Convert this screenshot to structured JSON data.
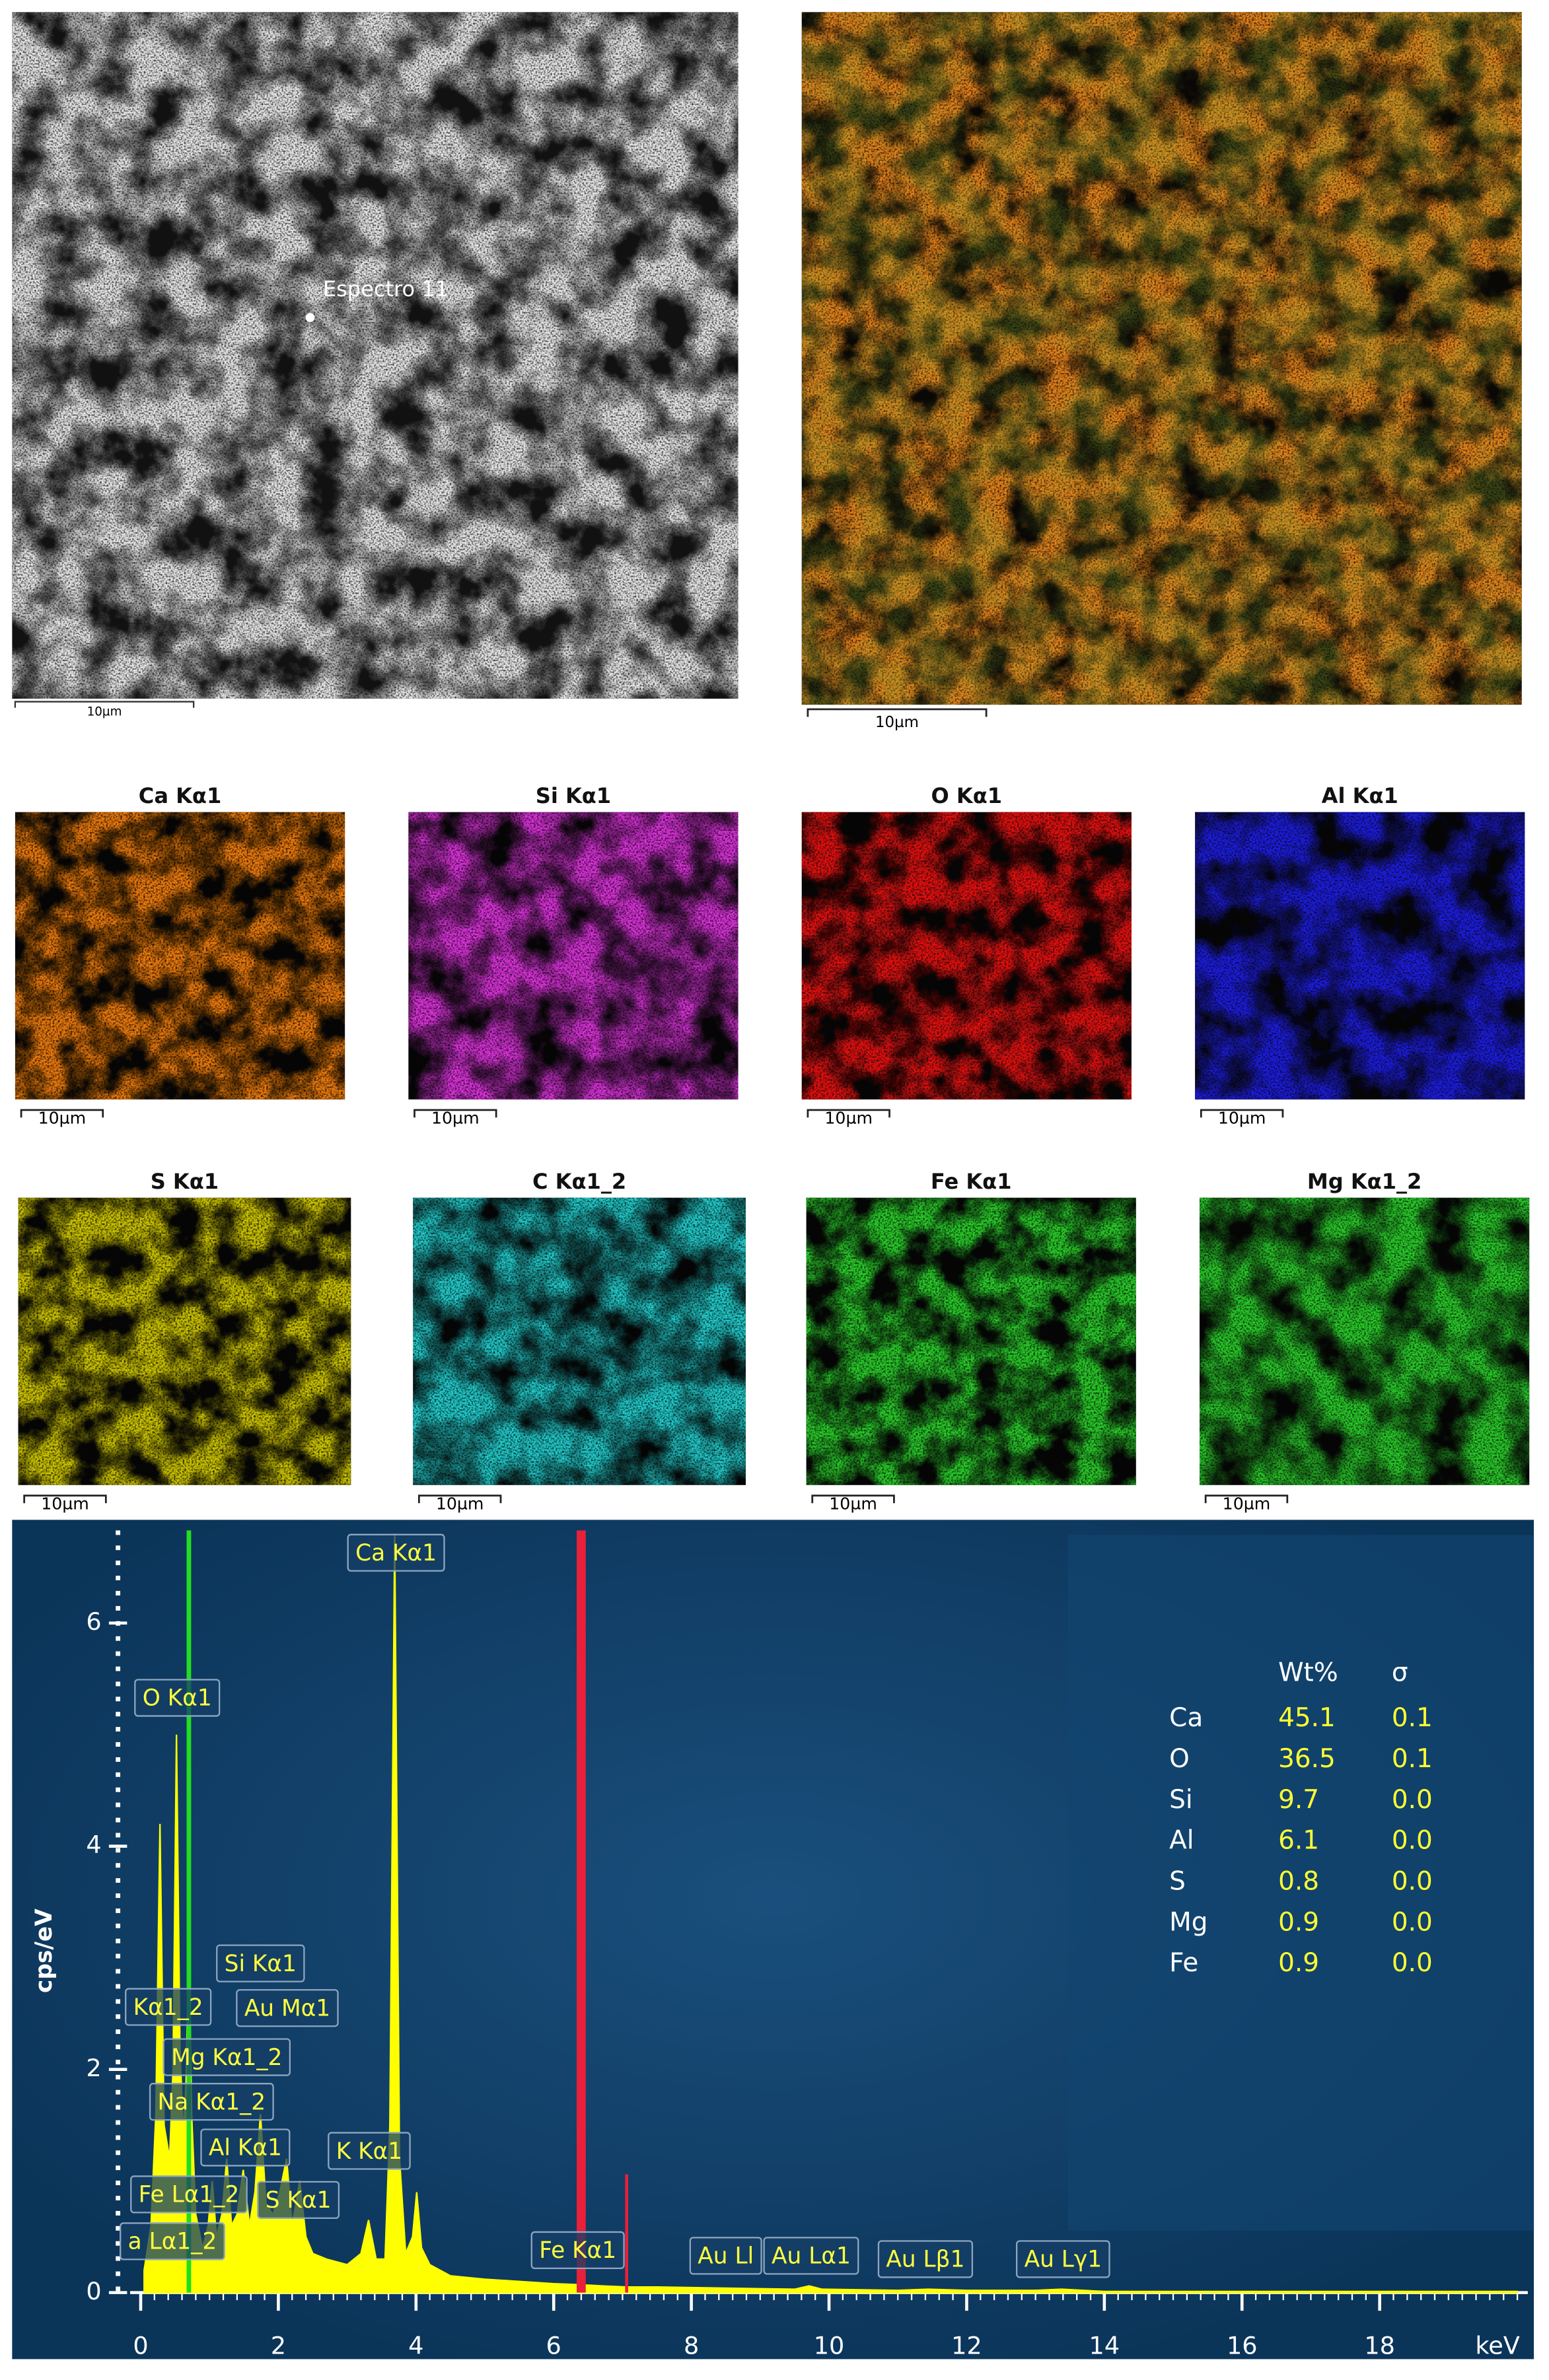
{
  "figure": {
    "sem": {
      "spot_label": "Espectro 11",
      "scale_label": "10µm"
    },
    "composite": {
      "scale_label": "10µm"
    },
    "maps": [
      {
        "title": "Ca Kα1",
        "color": "#e8780a",
        "scale_label": "10µm"
      },
      {
        "title": "Si Kα1",
        "color": "#d830d8",
        "scale_label": "10µm"
      },
      {
        "title": "O Kα1",
        "color": "#e41010",
        "scale_label": "10µm"
      },
      {
        "title": "Al Kα1",
        "color": "#1c1ce0",
        "scale_label": "10µm"
      },
      {
        "title": "S Kα1",
        "color": "#c8c000",
        "scale_label": "10µm"
      },
      {
        "title": "C Kα1_2",
        "color": "#20c8c8",
        "scale_label": "10µm"
      },
      {
        "title": "Fe Kα1",
        "color": "#28c828",
        "scale_label": "10µm"
      },
      {
        "title": "Mg Kα1_2",
        "color": "#28c828",
        "scale_label": "10µm"
      }
    ]
  },
  "chart_data": {
    "type": "area",
    "x_label": "keV",
    "y_label": "cps/eV",
    "xlim": [
      0,
      20.24
    ],
    "ylim": [
      0,
      6.83
    ],
    "xticks": [
      0,
      2,
      4,
      6,
      8,
      10,
      12,
      14,
      16,
      18
    ],
    "yticks": [
      0,
      2,
      4,
      6
    ],
    "color": "#ffff00",
    "x": [
      0.05,
      0.15,
      0.22,
      0.28,
      0.34,
      0.42,
      0.47,
      0.52,
      0.57,
      0.62,
      0.66,
      0.7,
      0.74,
      0.8,
      0.9,
      0.98,
      1.04,
      1.1,
      1.18,
      1.25,
      1.32,
      1.4,
      1.49,
      1.58,
      1.66,
      1.74,
      1.82,
      1.92,
      2.02,
      2.12,
      2.2,
      2.31,
      2.4,
      2.5,
      2.7,
      3.0,
      3.2,
      3.31,
      3.42,
      3.55,
      3.62,
      3.69,
      3.76,
      3.85,
      3.95,
      4.01,
      4.08,
      4.2,
      4.5,
      5.0,
      6.0,
      6.4,
      6.7,
      7.06,
      7.5,
      8.5,
      9.5,
      9.71,
      9.9,
      11.0,
      11.44,
      12.0,
      13.0,
      13.38,
      14.0,
      16,
      18,
      20
    ],
    "values": [
      0.2,
      0.6,
      1.6,
      4.2,
      1.5,
      1.2,
      2.0,
      5.0,
      2.2,
      1.4,
      1.9,
      3.2,
      1.6,
      0.7,
      0.4,
      0.6,
      1.0,
      0.5,
      0.7,
      1.2,
      0.6,
      0.7,
      1.1,
      0.6,
      0.9,
      1.6,
      0.8,
      0.7,
      0.9,
      1.2,
      0.6,
      1.0,
      0.5,
      0.35,
      0.3,
      0.25,
      0.35,
      0.65,
      0.3,
      0.3,
      1.5,
      6.8,
      1.2,
      0.35,
      0.5,
      0.9,
      0.4,
      0.25,
      0.15,
      0.12,
      0.08,
      0.07,
      0.06,
      0.05,
      0.05,
      0.04,
      0.03,
      0.06,
      0.03,
      0.02,
      0.03,
      0.02,
      0.02,
      0.03,
      0.01,
      0.01,
      0.01,
      0.01
    ],
    "markers": [
      {
        "x": 0.7,
        "y": 6.83,
        "color": "#22dd22"
      },
      {
        "x": 6.4,
        "y": 6.83,
        "color": "#e8203a"
      },
      {
        "x": 7.06,
        "y": 1.06,
        "color": "#e8203a"
      }
    ],
    "annotations": [
      {
        "text": "Ca Kα1",
        "x": 3.71,
        "y": 6.63
      },
      {
        "text": "O Kα1",
        "x": 0.53,
        "y": 5.33
      },
      {
        "text": "Si Kα1",
        "x": 1.74,
        "y": 2.95
      },
      {
        "text": "Au Mα1",
        "x": 2.13,
        "y": 2.55
      },
      {
        "text": "Kα1_2",
        "x": 0.4,
        "y": 2.56
      },
      {
        "text": "Mg Kα1_2",
        "x": 1.25,
        "y": 2.11
      },
      {
        "text": "Na Kα1_2",
        "x": 1.03,
        "y": 1.71
      },
      {
        "text": "Al Kα1",
        "x": 1.52,
        "y": 1.3
      },
      {
        "text": "K Kα1",
        "x": 3.32,
        "y": 1.27
      },
      {
        "text": "Fe Lα1_2",
        "x": 0.7,
        "y": 0.88
      },
      {
        "text": "S Kα1",
        "x": 2.29,
        "y": 0.83
      },
      {
        "text": "a Lα1_2",
        "x": 0.46,
        "y": 0.46
      },
      {
        "text": "Fe Kα1",
        "x": 6.35,
        "y": 0.38
      },
      {
        "text": "Au Ll",
        "x": 8.5,
        "y": 0.33
      },
      {
        "text": "Au Lα1",
        "x": 9.74,
        "y": 0.33
      },
      {
        "text": "Au Lβ1",
        "x": 11.4,
        "y": 0.3
      },
      {
        "text": "Au Lγ1",
        "x": 13.4,
        "y": 0.3
      }
    ],
    "table": {
      "header": [
        "Wt%",
        "σ"
      ],
      "rows": [
        [
          "Ca",
          "45.1",
          "0.1"
        ],
        [
          "O",
          "36.5",
          "0.1"
        ],
        [
          "Si",
          "9.7",
          "0.0"
        ],
        [
          "Al",
          "6.1",
          "0.0"
        ],
        [
          "S",
          "0.8",
          "0.0"
        ],
        [
          "Mg",
          "0.9",
          "0.0"
        ],
        [
          "Fe",
          "0.9",
          "0.0"
        ]
      ]
    }
  }
}
